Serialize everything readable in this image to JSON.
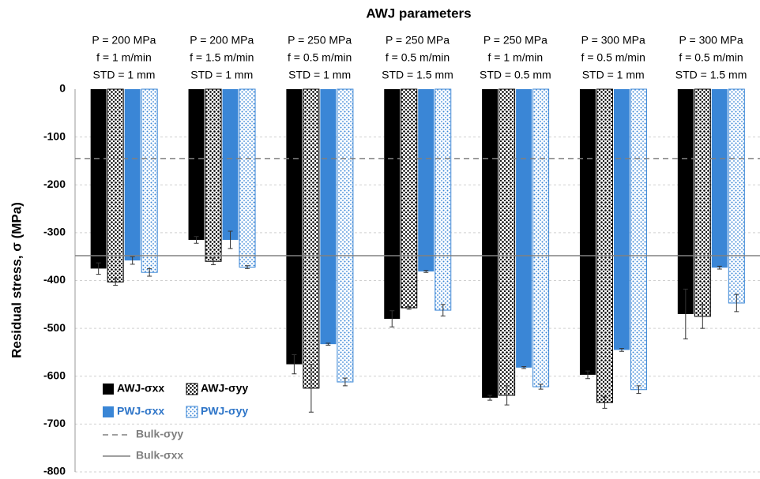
{
  "chart_data": {
    "type": "bar",
    "title": "AWJ parameters",
    "y_label": "Residual stress, σ (MPa)",
    "categories": [
      [
        "P = 200 MPa",
        "f = 1 m/min",
        "STD = 1 mm"
      ],
      [
        "P = 200 MPa",
        "f = 1.5 m/min",
        "STD = 1 mm"
      ],
      [
        "P = 250 MPa",
        "f = 0.5 m/min",
        "STD = 1 mm"
      ],
      [
        "P = 250 MPa",
        "f = 0.5 m/min",
        "STD = 1.5 mm"
      ],
      [
        "P = 250 MPa",
        "f = 1 m/min",
        "STD = 0.5 mm"
      ],
      [
        "P = 300 MPa",
        "f = 0.5 m/min",
        "STD = 1 mm"
      ],
      [
        "P = 300 MPa",
        "f = 0.5 m/min",
        "STD = 1.5 mm"
      ]
    ],
    "series": [
      {
        "name": "AWJ-σxx",
        "color": "#000000",
        "label_color": "#000000",
        "pattern": "solid",
        "values": [
          -375,
          -315,
          -575,
          -480,
          -645,
          -597,
          -470
        ],
        "errors": [
          12,
          7,
          20,
          17,
          5,
          8,
          52
        ]
      },
      {
        "name": "AWJ-σyy",
        "color": "#000000",
        "label_color": "#000000",
        "pattern": "dots",
        "values": [
          -403,
          -360,
          -625,
          -457,
          -640,
          -655,
          -475
        ],
        "errors": [
          7,
          7,
          50,
          3,
          20,
          12,
          25
        ]
      },
      {
        "name": "PWJ-σxx",
        "color": "#3a86d6",
        "label_color": "#2e75c8",
        "pattern": "solid",
        "values": [
          -358,
          -315,
          -533,
          -381,
          -582,
          -545,
          -373
        ],
        "errors": [
          8,
          18,
          2,
          2,
          2,
          3,
          3
        ]
      },
      {
        "name": "PWJ-σyy",
        "color": "#3a86d6",
        "label_color": "#2e75c8",
        "pattern": "dots",
        "values": [
          -383,
          -372,
          -612,
          -462,
          -622,
          -628,
          -447
        ],
        "errors": [
          8,
          3,
          8,
          12,
          5,
          8,
          18
        ]
      }
    ],
    "reference_lines": [
      {
        "name": "Bulk-σyy",
        "value": -145,
        "style": "dashed",
        "color": "#808080"
      },
      {
        "name": "Bulk-σxx",
        "value": -348,
        "style": "solid",
        "color": "#808080"
      }
    ],
    "ylim": [
      -800,
      0
    ],
    "yticks": [
      0,
      -100,
      -200,
      -300,
      -400,
      -500,
      -600,
      -700,
      -800
    ],
    "grid": true
  }
}
